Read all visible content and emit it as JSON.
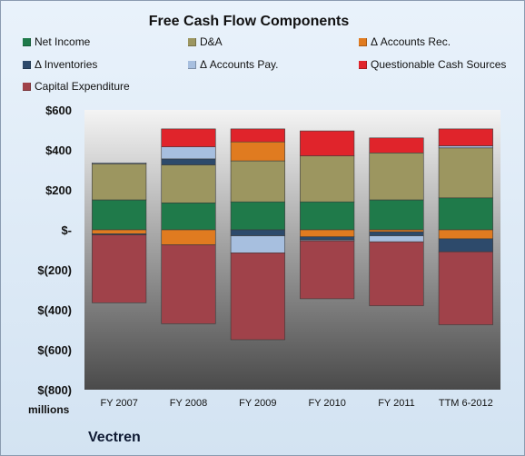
{
  "chart_data": {
    "type": "bar",
    "stacked": true,
    "title": "Free Cash Flow Components",
    "categories": [
      "FY 2007",
      "FY 2008",
      "FY 2009",
      "FY 2010",
      "FY 2011",
      "TTM 6-2012"
    ],
    "y_ticks": [
      "$600",
      "$400",
      "$200",
      "$-",
      "$(200)",
      "$(400)",
      "$(600)",
      "$(800)"
    ],
    "ylim": [
      -800,
      600
    ],
    "units": "millions",
    "company": "Vectren",
    "grid": false,
    "legend_position": "top",
    "series": [
      {
        "name": "Net Income",
        "color": "#1f7a4a",
        "values": [
          150,
          135,
          140,
          140,
          150,
          160
        ]
      },
      {
        "name": "D&A",
        "color": "#9c9660",
        "values": [
          180,
          190,
          205,
          230,
          235,
          250
        ]
      },
      {
        "name": "Δ Accounts Rec.",
        "color": "#e07b20",
        "values": [
          -20,
          -75,
          95,
          -35,
          -10,
          -45
        ]
      },
      {
        "name": "Δ Inventories",
        "color": "#2d4a6b",
        "values": [
          -5,
          30,
          -30,
          -15,
          -20,
          -65
        ]
      },
      {
        "name": "Δ Accounts Pay.",
        "color": "#a7bfdf",
        "values": [
          5,
          60,
          -85,
          -5,
          -30,
          10
        ]
      },
      {
        "name": "Questionable Cash Sources",
        "color": "#e0242b",
        "values": [
          0,
          90,
          65,
          125,
          75,
          85
        ]
      },
      {
        "name": "Capital Expenditure",
        "color": "#a0424a",
        "values": [
          -340,
          -395,
          -435,
          -290,
          -320,
          -365
        ]
      }
    ]
  }
}
